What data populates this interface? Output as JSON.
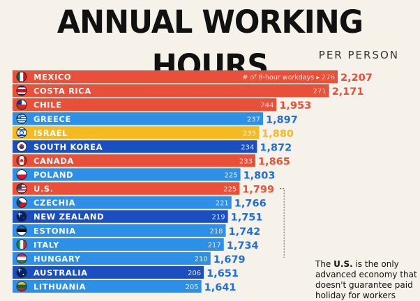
{
  "title": "ANNUAL WORKING HOURS",
  "subtitle": "PER PERSON",
  "workdays_label": "# of 8-hour workdays",
  "note": {
    "before": "The ",
    "bold": "U.S.",
    "after": " is the only advanced economy that doesn't guarantee paid holiday for workers"
  },
  "colors": {
    "red": "#e8503a",
    "blue_light": "#2e8fe6",
    "blue_dark": "#1b4fbf",
    "yellow": "#f5b921",
    "value_red": "#e8503a",
    "value_blue": "#1f6fd6",
    "value_yellow": "#f5b921"
  },
  "chart_data": {
    "type": "bar",
    "orientation": "horizontal",
    "title": "ANNUAL WORKING HOURS",
    "subtitle": "PER PERSON",
    "categories": [
      "MEXICO",
      "COSTA RICA",
      "CHILE",
      "GREECE",
      "ISRAEL",
      "SOUTH KOREA",
      "CANADA",
      "POLAND",
      "U.S.",
      "CZECHIA",
      "NEW ZEALAND",
      "ESTONIA",
      "ITALY",
      "HUNGARY",
      "AUSTRALIA",
      "LITHUANIA"
    ],
    "series": [
      {
        "values": [
          2207,
          2171,
          1953,
          1897,
          1880,
          1872,
          1865,
          1803,
          1799,
          1766,
          1751,
          1742,
          1734,
          1679,
          1651,
          1641
        ],
        "labels": [
          "2,207",
          "2,171",
          "1,953",
          "1,897",
          "1,880",
          "1,872",
          "1,865",
          "1,803",
          "1,799",
          "1,766",
          "1,751",
          "1,742",
          "1,734",
          "1,679",
          "1,651",
          "1,641"
        ]
      },
      {
        "values": [
          276,
          271,
          244,
          237,
          235,
          234,
          233,
          225,
          225,
          221,
          219,
          218,
          217,
          210,
          206,
          205
        ]
      }
    ],
    "bar_colors": [
      "red",
      "red",
      "red",
      "blue_light",
      "yellow",
      "blue_dark",
      "red",
      "blue_light",
      "red",
      "blue_light",
      "blue_dark",
      "blue_light",
      "blue_light",
      "blue_light",
      "blue_dark",
      "blue_light"
    ],
    "flags": [
      "mexico-flag",
      "costa-rica-flag",
      "chile-flag",
      "greece-flag",
      "israel-flag",
      "south-korea-flag",
      "canada-flag",
      "poland-flag",
      "us-flag",
      "czechia-flag",
      "new-zealand-flag",
      "estonia-flag",
      "italy-flag",
      "hungary-flag",
      "australia-flag",
      "lithuania-flag"
    ],
    "grid": false,
    "legend": "none"
  }
}
